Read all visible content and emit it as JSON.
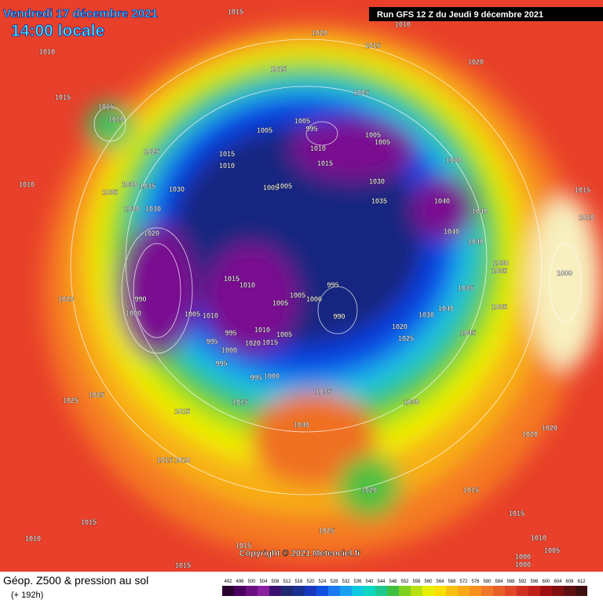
{
  "header": {
    "date": "Vendredi 17 décembre 2021",
    "time": "14:00 locale",
    "run": "Run GFS 12 Z du Jeudi 9 décembre 2021"
  },
  "map": {
    "copyright": "Copyright © 2021 Meteociel.fr",
    "pressure_labels": [
      1015,
      1010,
      1020,
      1010,
      1015,
      1015,
      1020,
      1005,
      1015,
      1015,
      1010,
      1005,
      995,
      1005,
      1005,
      1005,
      1010,
      1025,
      1015,
      1010,
      1015,
      1030,
      1010,
      1035,
      1030,
      1035,
      1030,
      1005,
      1005,
      1030,
      1035,
      1040,
      1015,
      1030,
      1030,
      1040,
      1010,
      1040,
      1040,
      1020,
      1015,
      1010,
      1030,
      1035,
      1000,
      1035,
      1020,
      990,
      1005,
      1005,
      1000,
      995,
      1040,
      1035,
      1000,
      1005,
      1010,
      990,
      1030,
      1020,
      1045,
      1005,
      995,
      1010,
      1020,
      1015,
      995,
      1025,
      1000,
      995,
      995,
      1000,
      1035,
      1030,
      1025,
      1025,
      1015,
      1015,
      1040,
      1020,
      1020,
      1015,
      1010,
      1020,
      1015,
      1015,
      1015,
      1010,
      1025,
      1015,
      1010,
      1005,
      1000,
      1000,
      1015
    ]
  },
  "footer": {
    "title": "Géop. Z500 & pression au sol",
    "lead": "(+ 192h)",
    "colorbar": {
      "values": [
        492,
        496,
        500,
        504,
        508,
        512,
        516,
        520,
        524,
        528,
        532,
        536,
        540,
        544,
        548,
        552,
        556,
        560,
        564,
        568,
        572,
        576,
        580,
        584,
        588,
        592,
        596,
        600,
        604,
        608,
        612
      ],
      "colors": [
        "#2a0030",
        "#4a0060",
        "#6a1080",
        "#8a20a0",
        "#3a1070",
        "#202870",
        "#1a3090",
        "#1838c0",
        "#1050e0",
        "#1a78f0",
        "#18a0f0",
        "#10c8e0",
        "#10d8c0",
        "#20c890",
        "#40c040",
        "#80d020",
        "#b8e010",
        "#e8f000",
        "#f8e000",
        "#f8c010",
        "#f8a818",
        "#f89020",
        "#f07828",
        "#e86028",
        "#e04828",
        "#d03020",
        "#c02018",
        "#a01010",
        "#801010",
        "#601010",
        "#401010"
      ]
    }
  }
}
